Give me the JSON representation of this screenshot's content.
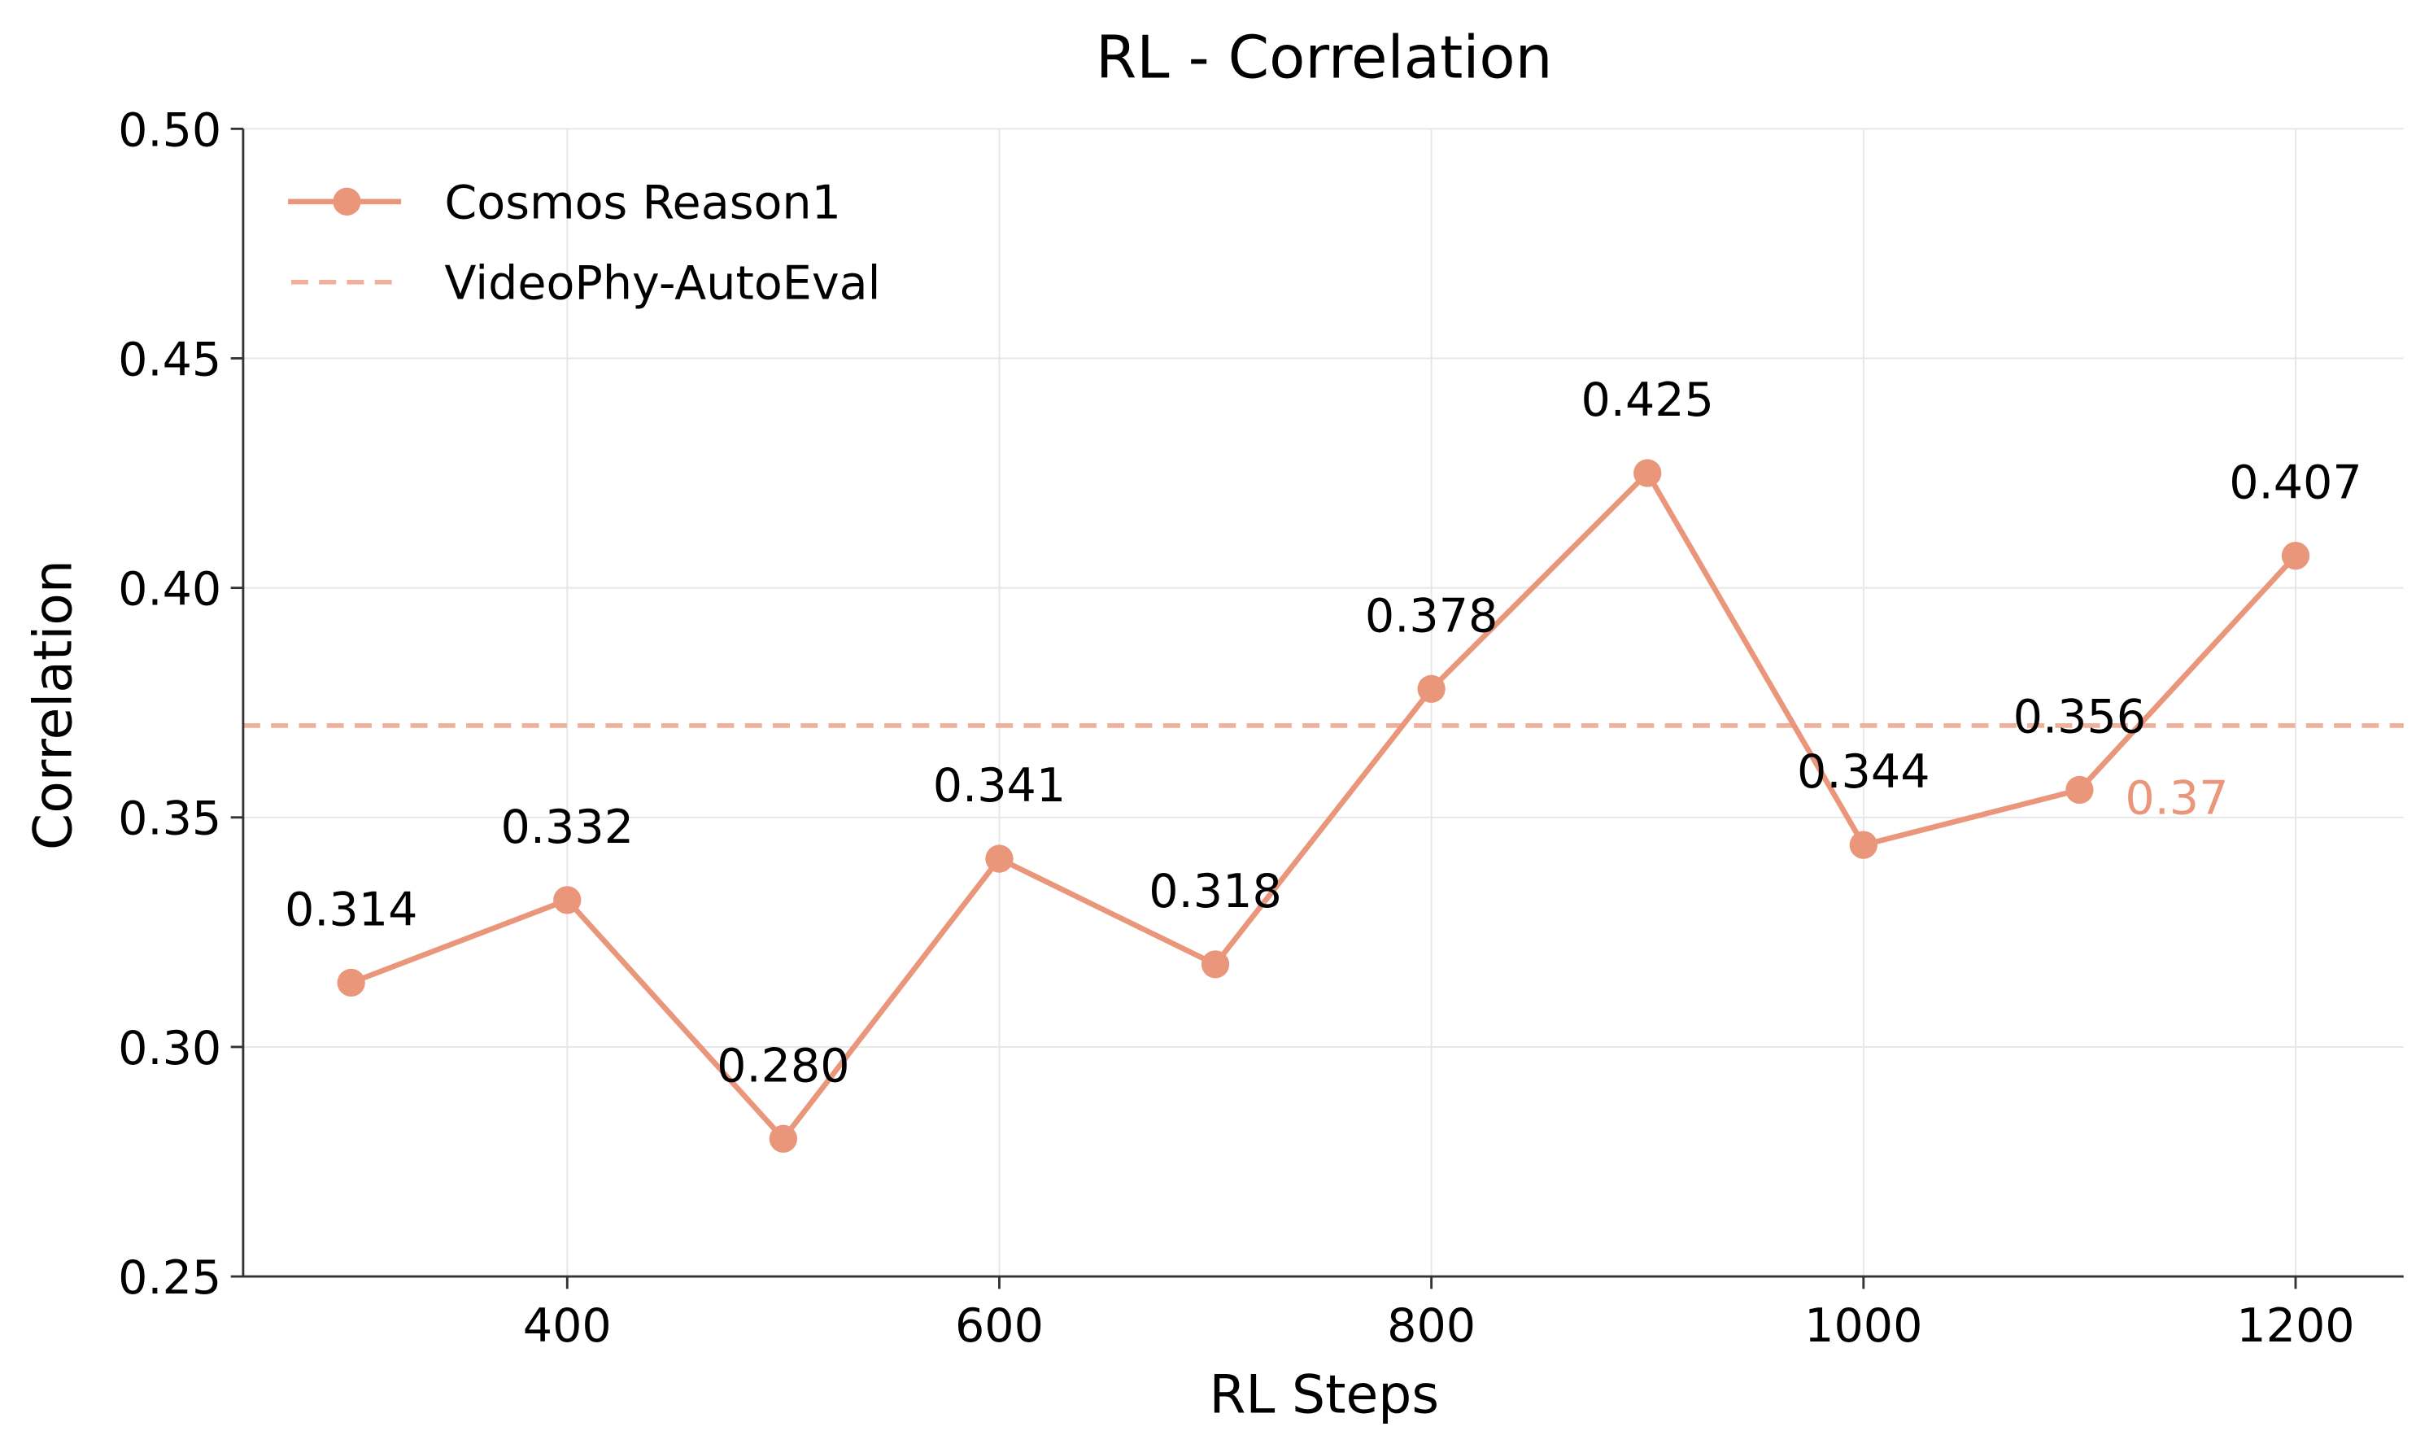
{
  "chart_data": {
    "type": "line",
    "title": "RL - Correlation",
    "xlabel": "RL Steps",
    "ylabel": "Correlation",
    "xlim": [
      250,
      1250
    ],
    "ylim": [
      0.25,
      0.5
    ],
    "xticks": [
      400,
      600,
      800,
      1000,
      1200
    ],
    "xtick_labels": [
      "400",
      "600",
      "800",
      "1000",
      "1200"
    ],
    "yticks": [
      0.25,
      0.3,
      0.35,
      0.4,
      0.45,
      0.5
    ],
    "ytick_labels": [
      "0.25",
      "0.30",
      "0.35",
      "0.40",
      "0.45",
      "0.50"
    ],
    "grid": true,
    "legend_position": "top-left",
    "series": [
      {
        "name": "Cosmos Reason1",
        "style": "solid-marker",
        "color": "#E9967A",
        "x": [
          300,
          400,
          500,
          600,
          700,
          800,
          900,
          1000,
          1100,
          1200
        ],
        "values": [
          0.314,
          0.332,
          0.28,
          0.341,
          0.318,
          0.378,
          0.425,
          0.344,
          0.356,
          0.407
        ],
        "labels": [
          "0.314",
          "0.332",
          "0.280",
          "0.341",
          "0.318",
          "0.378",
          "0.425",
          "0.344",
          "0.356",
          "0.407"
        ]
      }
    ],
    "reference_line": {
      "name": "VideoPhy-AutoEval",
      "style": "dashed",
      "color": "#F0B09C",
      "value": 0.37,
      "label": "0.37"
    }
  }
}
